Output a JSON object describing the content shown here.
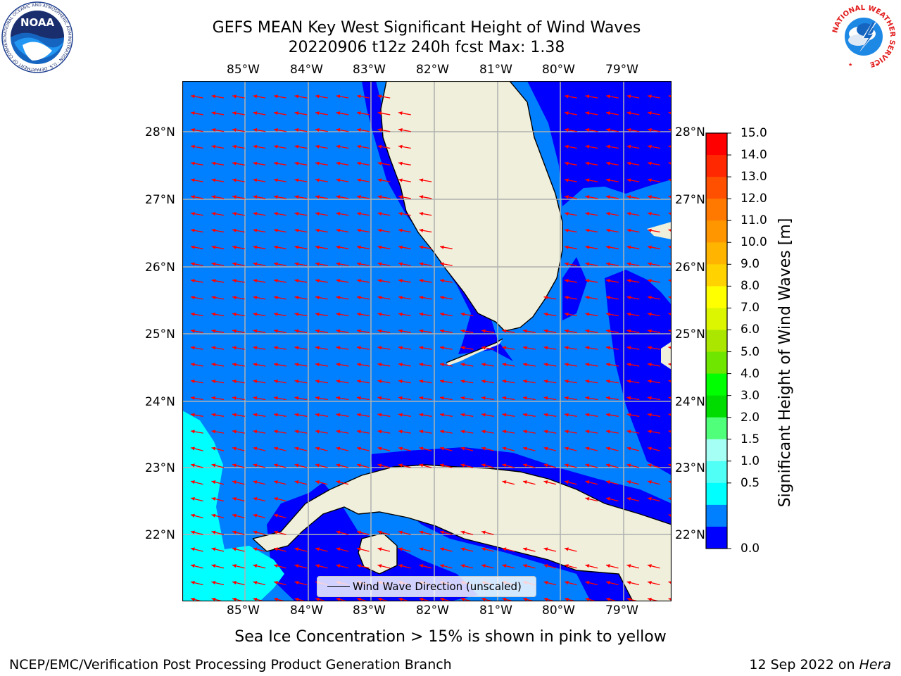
{
  "title": {
    "line1": "GEFS MEAN Key West Significant Height of Wind Waves",
    "line2": "20220906 t12z 240h fcst   Max: 1.38"
  },
  "map": {
    "lon_labels": [
      "85°W",
      "84°W",
      "83°W",
      "82°W",
      "81°W",
      "80°W",
      "79°W"
    ],
    "lat_labels": [
      "28°N",
      "27°N",
      "26°N",
      "25°N",
      "24°N",
      "23°N",
      "22°N"
    ],
    "colors": {
      "very_light_blue": "#0000ff",
      "light_blue": "#0080ff",
      "cyan": "#00ffff",
      "land": "#efefdb",
      "grid": "#b0b0b0",
      "arrow": "#ff0000"
    },
    "legend_label": "Wind Wave Direction (unscaled)"
  },
  "colorbar": {
    "label": "Significant Height of Wind Waves [m]",
    "ticks": [
      "15.0",
      "14.0",
      "13.0",
      "12.0",
      "11.0",
      "10.0",
      "9.0",
      "8.0",
      "7.0",
      "6.0",
      "5.0",
      "4.0",
      "3.0",
      "2.0",
      "1.5",
      "1.0",
      "0.5",
      "0.0"
    ],
    "colors_top_to_bottom": [
      "#ff0000",
      "#ff2800",
      "#ff5000",
      "#ff7800",
      "#ff9600",
      "#ffb400",
      "#ffd200",
      "#ffff00",
      "#dcf500",
      "#aae600",
      "#6ee600",
      "#00ff00",
      "#00dc00",
      "#50ff7a",
      "#a6fff5",
      "#50fff5",
      "#00ffff",
      "#0080ff",
      "#0000ff"
    ]
  },
  "note": "Sea Ice Concentration > 15% is shown in pink to yellow",
  "footer": {
    "left": "NCEP/EMC/Verification Post Processing Product Generation Branch",
    "date": "12 Sep 2022 on ",
    "host": "Hera"
  },
  "logos": {
    "noaa": "NOAA",
    "noaa_ring": "NATIONAL OCEANIC AND ATMOSPHERIC ADMINISTRATION · U.S. DEPARTMENT OF COMMERCE",
    "nws_ring": "NATIONAL WEATHER SERVICE"
  }
}
